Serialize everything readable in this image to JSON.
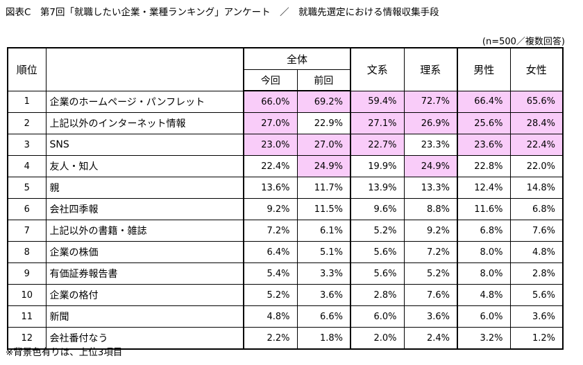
{
  "title": "図表C　第7回「就職したい企業・業種ランキング」アンケート　／　就職先選定における情報収集手段",
  "sample_note": "(n=500／複数回答)",
  "footnote": "※背景色有りは、上位3項目",
  "colors": {
    "highlight": "#f9ccf9",
    "border": "#000000"
  },
  "chart_data": {
    "type": "table",
    "title": "就職先選定における情報収集手段",
    "headers": {
      "rank": "順位",
      "item": "",
      "group_all": "全体",
      "current": "今回",
      "previous": "前回",
      "humanities": "文系",
      "science": "理系",
      "male": "男性",
      "female": "女性"
    },
    "rows": [
      {
        "rank": "1",
        "item": "企業のホームページ・パンフレット",
        "values": [
          "66.0%",
          "69.2%",
          "59.4%",
          "72.7%",
          "66.4%",
          "65.6%"
        ],
        "highlight": [
          true,
          true,
          true,
          true,
          true,
          true
        ]
      },
      {
        "rank": "2",
        "item": "上記以外のインターネット情報",
        "values": [
          "27.0%",
          "22.9%",
          "27.1%",
          "26.9%",
          "25.6%",
          "28.4%"
        ],
        "highlight": [
          true,
          false,
          true,
          true,
          true,
          true
        ]
      },
      {
        "rank": "3",
        "item": "SNS",
        "values": [
          "23.0%",
          "27.0%",
          "22.7%",
          "23.3%",
          "23.6%",
          "22.4%"
        ],
        "highlight": [
          true,
          true,
          true,
          false,
          true,
          true
        ]
      },
      {
        "rank": "4",
        "item": "友人・知人",
        "values": [
          "22.4%",
          "24.9%",
          "19.9%",
          "24.9%",
          "22.8%",
          "22.0%"
        ],
        "highlight": [
          false,
          true,
          false,
          true,
          false,
          false
        ]
      },
      {
        "rank": "5",
        "item": "親",
        "values": [
          "13.6%",
          "11.7%",
          "13.9%",
          "13.3%",
          "12.4%",
          "14.8%"
        ],
        "highlight": [
          false,
          false,
          false,
          false,
          false,
          false
        ]
      },
      {
        "rank": "6",
        "item": "会社四季報",
        "values": [
          "9.2%",
          "11.5%",
          "9.6%",
          "8.8%",
          "11.6%",
          "6.8%"
        ],
        "highlight": [
          false,
          false,
          false,
          false,
          false,
          false
        ]
      },
      {
        "rank": "7",
        "item": "上記以外の書籍・雑誌",
        "values": [
          "7.2%",
          "6.1%",
          "5.2%",
          "9.2%",
          "6.8%",
          "7.6%"
        ],
        "highlight": [
          false,
          false,
          false,
          false,
          false,
          false
        ]
      },
      {
        "rank": "8",
        "item": "企業の株価",
        "values": [
          "6.4%",
          "5.1%",
          "5.6%",
          "7.2%",
          "8.0%",
          "4.8%"
        ],
        "highlight": [
          false,
          false,
          false,
          false,
          false,
          false
        ]
      },
      {
        "rank": "9",
        "item": "有価証券報告書",
        "values": [
          "5.4%",
          "3.3%",
          "5.6%",
          "5.2%",
          "8.0%",
          "2.8%"
        ],
        "highlight": [
          false,
          false,
          false,
          false,
          false,
          false
        ]
      },
      {
        "rank": "10",
        "item": "企業の格付",
        "values": [
          "5.2%",
          "3.6%",
          "2.8%",
          "7.6%",
          "4.8%",
          "5.6%"
        ],
        "highlight": [
          false,
          false,
          false,
          false,
          false,
          false
        ]
      },
      {
        "rank": "11",
        "item": "新聞",
        "values": [
          "4.8%",
          "6.6%",
          "6.0%",
          "3.6%",
          "6.0%",
          "3.6%"
        ],
        "highlight": [
          false,
          false,
          false,
          false,
          false,
          false
        ]
      },
      {
        "rank": "12",
        "item": "会社番付なう",
        "values": [
          "2.2%",
          "1.8%",
          "2.0%",
          "2.4%",
          "3.2%",
          "1.2%"
        ],
        "highlight": [
          false,
          false,
          false,
          false,
          false,
          false
        ]
      }
    ]
  }
}
